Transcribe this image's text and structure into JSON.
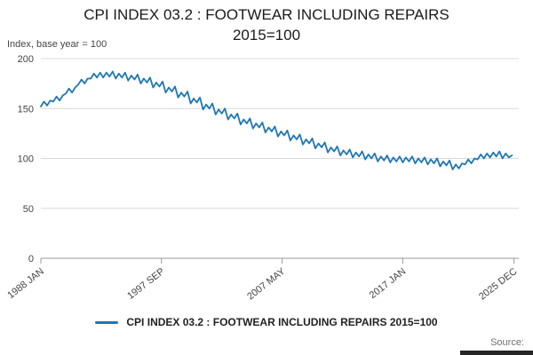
{
  "title": {
    "line1": "CPI INDEX 03.2 : FOOTWEAR INCLUDING REPAIRS",
    "line2": "2015=100"
  },
  "axis_note": "Index, base year = 100",
  "legend": {
    "label": "CPI INDEX 03.2 : FOOTWEAR INCLUDING REPAIRS 2015=100"
  },
  "source_label": "Source:",
  "colors": {
    "series": "#1f77b4",
    "grid": "#d9d9d9",
    "axis": "#999999",
    "muted": "#444444",
    "text": "#1a1a1a"
  },
  "chart_data": {
    "type": "line",
    "title": "CPI INDEX 03.2 : FOOTWEAR INCLUDING REPAIRS 2015=100",
    "xlabel": "",
    "ylabel": "Index, base year = 100",
    "ylim": [
      0,
      200
    ],
    "yticks": [
      0,
      50,
      100,
      150,
      200
    ],
    "xlim": [
      1988,
      2026.3
    ],
    "xticks": [
      {
        "x": 1988.0,
        "label": "1988 JAN"
      },
      {
        "x": 1997.667,
        "label": "1997 SEP"
      },
      {
        "x": 2007.333,
        "label": "2007 MAY"
      },
      {
        "x": 2017.0,
        "label": "2017 JAN"
      },
      {
        "x": 2025.917,
        "label": "2025 DEC"
      }
    ],
    "grid": true,
    "legend_position": "bottom",
    "series": [
      {
        "name": "CPI INDEX 03.2 : FOOTWEAR INCLUDING REPAIRS 2015=100",
        "x_start": 1988.0,
        "x_step": 0.25,
        "values": [
          152,
          157,
          153,
          158,
          157,
          162,
          158,
          163,
          165,
          170,
          166,
          171,
          174,
          179,
          175,
          180,
          180,
          185,
          181,
          186,
          181,
          186,
          182,
          187,
          180,
          185,
          181,
          186,
          178,
          183,
          179,
          184,
          175,
          180,
          176,
          181,
          171,
          176,
          172,
          177,
          166,
          171,
          167,
          172,
          161,
          166,
          162,
          167,
          155,
          160,
          156,
          161,
          149,
          154,
          150,
          155,
          144,
          149,
          145,
          150,
          139,
          144,
          140,
          145,
          134,
          139,
          135,
          140,
          130,
          135,
          131,
          136,
          126,
          131,
          127,
          132,
          122,
          127,
          123,
          128,
          118,
          123,
          119,
          124,
          114,
          119,
          115,
          120,
          110,
          115,
          111,
          116,
          106,
          111,
          107,
          112,
          103,
          108,
          104,
          109,
          101,
          106,
          102,
          107,
          99,
          104,
          100,
          105,
          97,
          102,
          98,
          103,
          96,
          101,
          97,
          102,
          96,
          101,
          97,
          102,
          95,
          100,
          96,
          101,
          94,
          99,
          95,
          100,
          92,
          97,
          93,
          98,
          89,
          94,
          90,
          95,
          94,
          99,
          95,
          100,
          99,
          104,
          100,
          105,
          101,
          106,
          102,
          107,
          100,
          105,
          101,
          103
        ]
      }
    ]
  }
}
